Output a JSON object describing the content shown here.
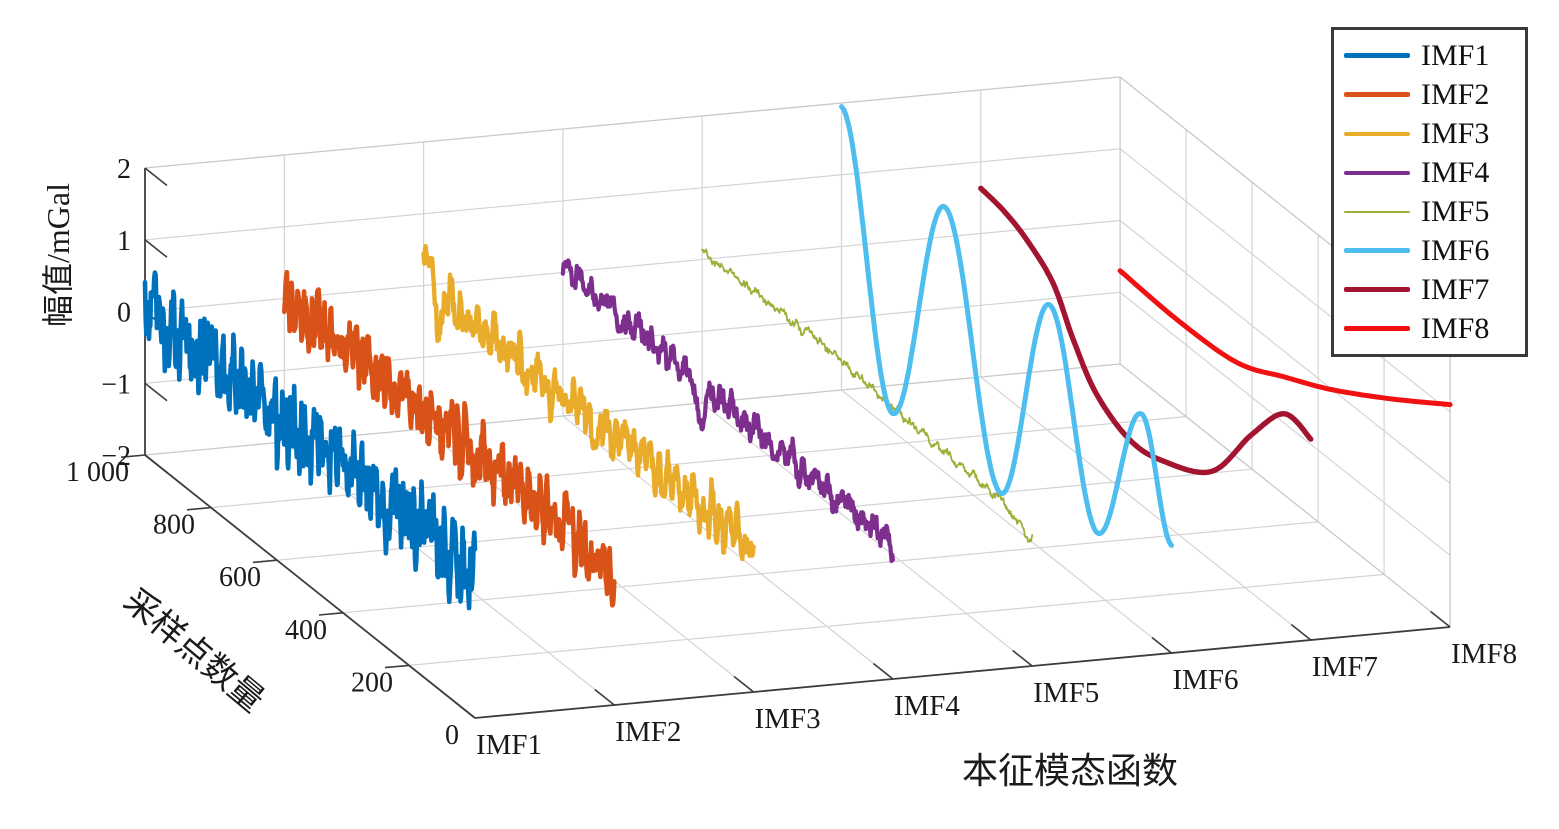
{
  "figure": {
    "background": "#ffffff",
    "grid_color": "#d4d4d4",
    "light_edge_color": "#c9c9c9",
    "dark_edge_color": "#3d3d3d",
    "text_color": "#1a1a1a"
  },
  "legend": {
    "position": "top-right",
    "items": [
      "IMF1",
      "IMF2",
      "IMF3",
      "IMF4",
      "IMF5",
      "IMF6",
      "IMF7",
      "IMF8"
    ]
  },
  "chart_data": {
    "type": "line",
    "subtype": "3d-waterfall-line-plot",
    "title": "",
    "xlabel": "本征模态函数",
    "ylabel": "采样点数量",
    "zlabel": "幅值/mGal",
    "x_tick_labels": [
      "IMF1",
      "IMF2",
      "IMF3",
      "IMF4",
      "IMF5",
      "IMF6",
      "IMF7",
      "IMF8"
    ],
    "y_ticks": [
      {
        "v": 0,
        "label": "0"
      },
      {
        "v": 200,
        "label": "200"
      },
      {
        "v": 400,
        "label": "400"
      },
      {
        "v": 600,
        "label": "600"
      },
      {
        "v": 800,
        "label": "800"
      },
      {
        "v": 1000,
        "label": "1 000"
      }
    ],
    "z_ticks": [
      {
        "v": -2,
        "label": "−2"
      },
      {
        "v": -1,
        "label": "−1"
      },
      {
        "v": 0,
        "label": "0"
      },
      {
        "v": 1,
        "label": "1"
      },
      {
        "v": 2,
        "label": "2"
      }
    ],
    "x_range": [
      1,
      8
    ],
    "y_range": [
      0,
      1000
    ],
    "z_range": [
      -2,
      2
    ],
    "grid": true,
    "legend_position": "top-right",
    "projection": {
      "origin": [
        475,
        718
      ],
      "vi": [
        139.3,
        -13
      ],
      "vd": [
        -330,
        -263
      ],
      "vz_per_unit": -71.75
    },
    "draw_order": [
      "IMF8",
      "IMF7",
      "IMF5",
      "IMF6",
      "IMF4",
      "IMF3",
      "IMF2",
      "IMF1"
    ],
    "series": [
      {
        "name": "IMF1",
        "color": "#0072BD",
        "width": 4.6,
        "kind": "noisy",
        "seed": 7,
        "mean": [
          [
            0,
            -0.02
          ],
          [
            1000,
            0.06
          ]
        ],
        "amp": 0.42,
        "f1": 0.088,
        "f2": 0.033,
        "spikes": []
      },
      {
        "name": "IMF2",
        "color": "#D95319",
        "width": 4.6,
        "kind": "noisy",
        "seed": 13,
        "mean": [
          [
            0,
            -0.08
          ],
          [
            1000,
            0.03
          ]
        ],
        "amp": 0.33,
        "f1": 0.052,
        "f2": 0.02,
        "spikes": []
      },
      {
        "name": "IMF3",
        "color": "#E9AC2A",
        "width": 4.4,
        "kind": "noisy",
        "seed": 21,
        "mean": [
          [
            0,
            0.02
          ],
          [
            1000,
            0.02
          ]
        ],
        "amp": 0.27,
        "f1": 0.038,
        "f2": 0.015,
        "spikes": [
          {
            "c": 988,
            "h": 0.5,
            "w": 13
          },
          {
            "c": 950,
            "h": -0.28,
            "w": 16
          }
        ]
      },
      {
        "name": "IMF4",
        "color": "#7E2F8E",
        "width": 4.2,
        "kind": "noisy",
        "seed": 5,
        "mean": [
          [
            0,
            -0.12
          ],
          [
            1000,
            0.05
          ]
        ],
        "amp": 0.17,
        "f1": 0.028,
        "f2": 0.011,
        "spikes": [
          {
            "c": 585,
            "h": -0.6,
            "w": 16
          },
          {
            "c": 630,
            "h": 0.15,
            "w": 12
          }
        ]
      },
      {
        "name": "IMF5",
        "color": "#9FAE38",
        "width": 1.8,
        "kind": "noisy",
        "seed": 17,
        "mean": [
          [
            0,
            -0.06
          ],
          [
            350,
            0.04
          ],
          [
            650,
            0.15
          ],
          [
            1000,
            0.1
          ]
        ],
        "amp": 0.055,
        "f1": 0.026,
        "f2": 0.012,
        "spikes": [
          {
            "c": 15,
            "h": -0.26,
            "w": 16
          },
          {
            "c": 60,
            "h": -0.1,
            "w": 14
          }
        ]
      },
      {
        "name": "IMF6",
        "color": "#4DBEEE",
        "width": 5,
        "kind": "extrema",
        "points": [
          [
            0,
            -0.5
          ],
          [
            89,
            1.0
          ],
          [
            225,
            -1.15
          ],
          [
            368,
            1.5
          ],
          [
            519,
            -1.67
          ],
          [
            686,
            1.7
          ],
          [
            847,
            -1.76
          ],
          [
            1000,
            1.95
          ]
        ]
      },
      {
        "name": "IMF7",
        "color": "#A2142F",
        "width": 5.4,
        "kind": "smooth",
        "points": [
          [
            0,
            0.8
          ],
          [
            80,
            0.86
          ],
          [
            180,
            0.2
          ],
          [
            300,
            -0.75
          ],
          [
            450,
            -1.15
          ],
          [
            550,
            -1.22
          ],
          [
            650,
            -0.95
          ],
          [
            720,
            -0.45
          ],
          [
            781,
            0.11
          ],
          [
            860,
            0.42
          ],
          [
            930,
            0.57
          ],
          [
            1000,
            0.63
          ]
        ]
      },
      {
        "name": "IMF8",
        "color": "#F01212",
        "width": 5,
        "kind": "smooth",
        "points": [
          [
            0,
            1.1
          ],
          [
            180,
            0.52
          ],
          [
            360,
            -0.01
          ],
          [
            500,
            -0.35
          ],
          [
            645,
            -0.68
          ],
          [
            820,
            -0.75
          ],
          [
            1000,
            -0.7
          ]
        ]
      }
    ]
  }
}
